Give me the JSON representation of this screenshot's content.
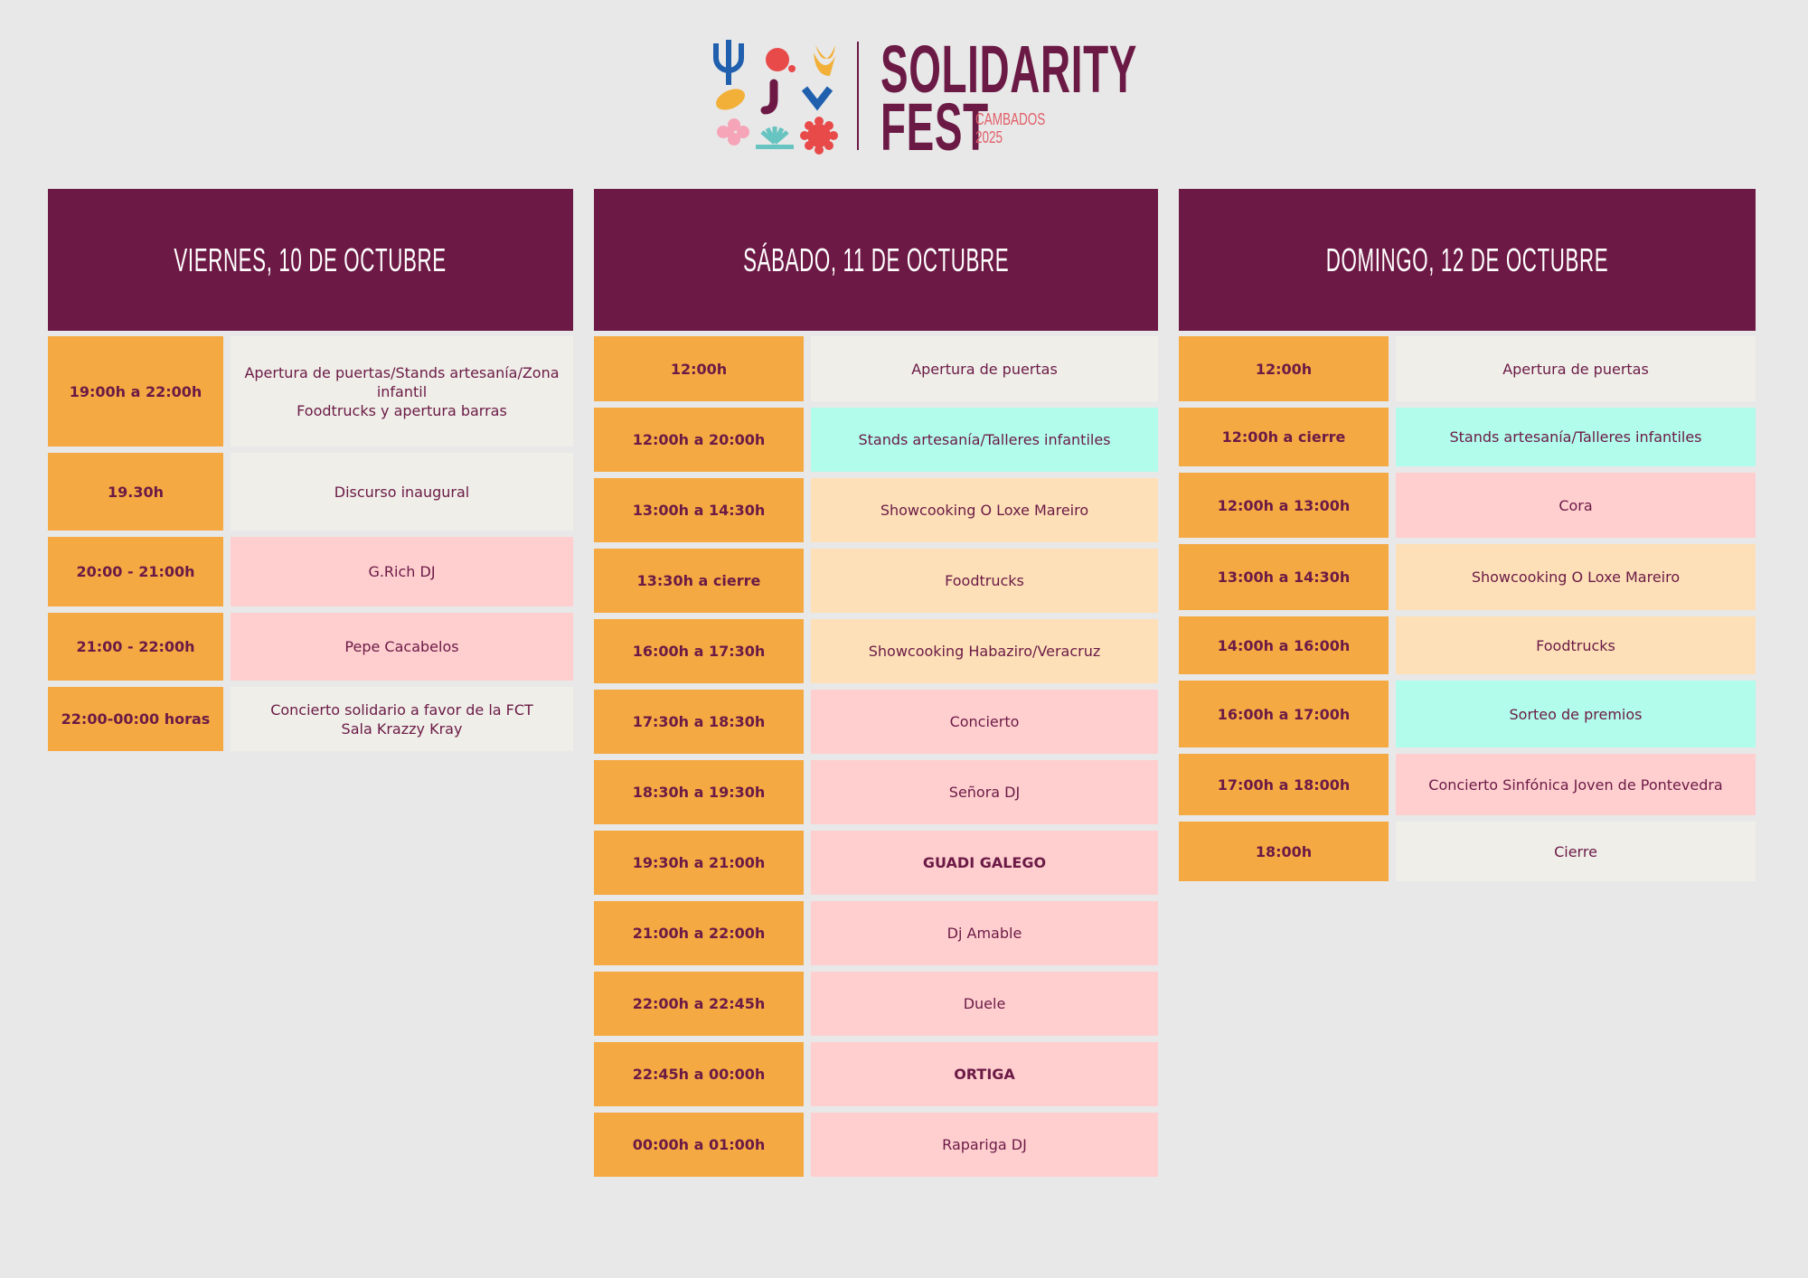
{
  "logo": {
    "word1": "SOLIDARITY",
    "word2": "FEST",
    "place": "CAMBADOS",
    "year": "2025"
  },
  "colors": {
    "header": "#6d1945",
    "time": "#f5a942",
    "grey": "#efeee9",
    "pink": "#ffcfd0",
    "peach": "#fde0b8",
    "mint": "#b1fceb",
    "text": "#6b1a45"
  },
  "days": [
    {
      "title": "VIERNES, 10 DE OCTUBRE",
      "events": [
        {
          "time": "19:00h a 22:00h",
          "activity": "Apertura de puertas/Stands artesanía/Zona infantil\nFoodtrucks y apertura barras",
          "color": "grey"
        },
        {
          "time": "19.30h",
          "activity": "Discurso inaugural",
          "color": "grey"
        },
        {
          "time": "20:00 - 21:00h",
          "activity": "G.Rich DJ",
          "color": "pink"
        },
        {
          "time": "21:00 - 22:00h",
          "activity": "Pepe Cacabelos",
          "color": "pink"
        },
        {
          "time": "22:00-00:00 horas",
          "activity": "Concierto solidario a favor de la FCT\nSala Krazzy Kray",
          "color": "grey"
        }
      ]
    },
    {
      "title": "SÁBADO, 11 DE OCTUBRE",
      "events": [
        {
          "time": "12:00h",
          "activity": "Apertura de puertas",
          "color": "grey"
        },
        {
          "time": "12:00h a 20:00h",
          "activity": "Stands artesanía/Talleres infantiles",
          "color": "mint"
        },
        {
          "time": "13:00h a 14:30h",
          "activity": "Showcooking O Loxe Mareiro",
          "color": "peach"
        },
        {
          "time": "13:30h a cierre",
          "activity": "Foodtrucks",
          "color": "peach"
        },
        {
          "time": "16:00h a 17:30h",
          "activity": "Showcooking Habaziro/Veracruz",
          "color": "peach"
        },
        {
          "time": "17:30h a 18:30h",
          "activity": "Concierto",
          "color": "pink"
        },
        {
          "time": "18:30h a 19:30h",
          "activity": "Señora DJ",
          "color": "pink"
        },
        {
          "time": "19:30h a 21:00h",
          "activity": "GUADI GALEGO",
          "color": "pink",
          "bold": true
        },
        {
          "time": "21:00h a 22:00h",
          "activity": "Dj Amable",
          "color": "pink"
        },
        {
          "time": "22:00h a 22:45h",
          "activity": "Duele",
          "color": "pink"
        },
        {
          "time": "22:45h a 00:00h",
          "activity": "ORTIGA",
          "color": "pink",
          "bold": true
        },
        {
          "time": "00:00h a 01:00h",
          "activity": "Rapariga DJ",
          "color": "pink"
        }
      ]
    },
    {
      "title": "DOMINGO, 12 DE OCTUBRE",
      "events": [
        {
          "time": "12:00h",
          "activity": "Apertura de puertas",
          "color": "grey"
        },
        {
          "time": "12:00h a cierre",
          "activity": "Stands artesanía/Talleres infantiles",
          "color": "mint"
        },
        {
          "time": "12:00h a 13:00h",
          "activity": "Cora",
          "color": "pink"
        },
        {
          "time": "13:00h a 14:30h",
          "activity": "Showcooking O Loxe Mareiro",
          "color": "peach"
        },
        {
          "time": "14:00h a 16:00h",
          "activity": "Foodtrucks",
          "color": "peach"
        },
        {
          "time": "16:00h a 17:00h",
          "activity": "Sorteo de premios",
          "color": "mint"
        },
        {
          "time": "17:00h a 18:00h",
          "activity": "Concierto Sinfónica Joven de Pontevedra",
          "color": "pink"
        },
        {
          "time": "18:00h",
          "activity": "Cierre",
          "color": "grey"
        }
      ]
    }
  ]
}
